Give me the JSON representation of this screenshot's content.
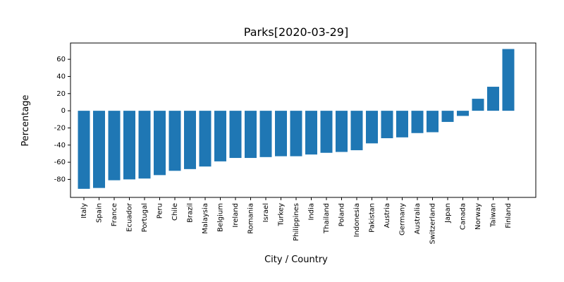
{
  "chart_data": {
    "type": "bar",
    "title": "Parks[2020-03-29]",
    "xlabel": "City / Country",
    "ylabel": "Percentage",
    "categories": [
      "Italy",
      "Spain",
      "France",
      "Ecuador",
      "Portugal",
      "Peru",
      "Chile",
      "Brazil",
      "Malaysia",
      "Belgium",
      "Ireland",
      "Romania",
      "Israel",
      "Turkey",
      "Philippines",
      "India",
      "Thailand",
      "Poland",
      "Indonesia",
      "Pakistan",
      "Austria",
      "Germany",
      "Australia",
      "Switzerland",
      "Japan",
      "Canada",
      "Norway",
      "Taiwan",
      "Finland"
    ],
    "values": [
      -91,
      -90,
      -81,
      -80,
      -79,
      -75,
      -70,
      -68,
      -65,
      -59,
      -55,
      -55,
      -54,
      -53,
      -53,
      -51,
      -49,
      -48,
      -46,
      -38,
      -32,
      -31,
      -26,
      -25,
      -13,
      -6,
      14,
      28,
      72
    ],
    "ylim": [
      -101,
      79
    ],
    "yticks": [
      -80,
      -60,
      -40,
      -20,
      0,
      20,
      40,
      60
    ],
    "bar_color": "#1f77b4",
    "grid": false,
    "legend": "none"
  }
}
